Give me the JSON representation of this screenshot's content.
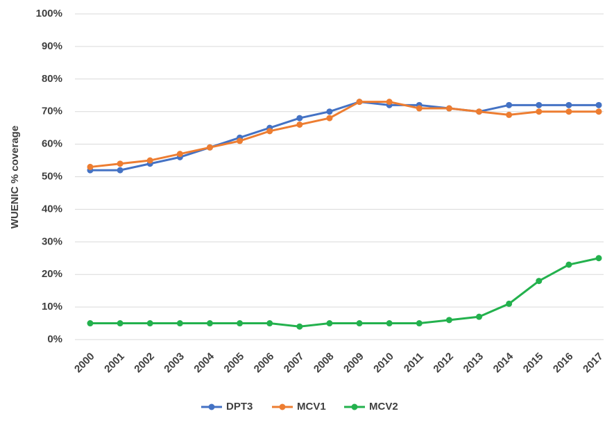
{
  "chart_data": {
    "type": "line",
    "y_label": "WUENIC % coverage",
    "categories": [
      "2000",
      "2001",
      "2002",
      "2003",
      "2004",
      "2005",
      "2006",
      "2007",
      "2008",
      "2009",
      "2010",
      "2011",
      "2012",
      "2013",
      "2014",
      "2015",
      "2016",
      "2017"
    ],
    "series": [
      {
        "name": "DPT3",
        "color": "#4472c4",
        "values": [
          52,
          52,
          54,
          56,
          59,
          62,
          65,
          68,
          70,
          73,
          72,
          72,
          71,
          70,
          72,
          72,
          72,
          72
        ]
      },
      {
        "name": "MCV1",
        "color": "#ed7d31",
        "values": [
          53,
          54,
          55,
          57,
          59,
          61,
          64,
          66,
          68,
          73,
          73,
          71,
          71,
          70,
          69,
          70,
          70,
          70
        ]
      },
      {
        "name": "MCV2",
        "color": "#23b14d",
        "values": [
          5,
          5,
          5,
          5,
          5,
          5,
          5,
          4,
          5,
          5,
          5,
          5,
          6,
          7,
          11,
          18,
          23,
          25
        ]
      }
    ],
    "ylim": [
      0,
      100
    ],
    "yticks": [
      {
        "value": 0,
        "label": "0%"
      },
      {
        "value": 10,
        "label": "10%"
      },
      {
        "value": 20,
        "label": "20%"
      },
      {
        "value": 30,
        "label": "30%"
      },
      {
        "value": 40,
        "label": "40%"
      },
      {
        "value": 50,
        "label": "50%"
      },
      {
        "value": 60,
        "label": "60%"
      },
      {
        "value": 70,
        "label": "70%"
      },
      {
        "value": 80,
        "label": "80%"
      },
      {
        "value": 90,
        "label": "90%"
      },
      {
        "value": 100,
        "label": "100%"
      }
    ],
    "grid": true,
    "legend": "bottom"
  }
}
